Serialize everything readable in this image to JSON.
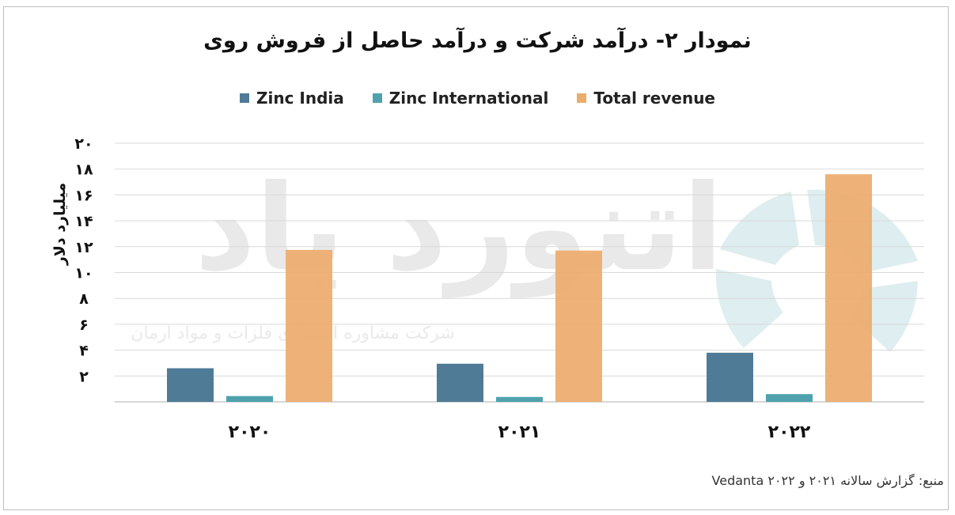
{
  "title": "نمودار ۲- درآمد شرکت و درآمد حاصل از فروش روی",
  "source": "منبع: گزارش سالانه ۲۰۲۱ و ۲۰۲۲ Vedanta",
  "watermark": {
    "brand": "آتنورد یاد",
    "tagline": "شرکت مشاوره اقتصادی فلزات و مواد ارمان"
  },
  "chart_data": {
    "type": "bar",
    "title": "نمودار ۲- درآمد شرکت و درآمد حاصل از فروش روی",
    "ylabel": "میلیارد دلار",
    "xlabel": "",
    "categories": [
      "۲۰۲۰",
      "۲۰۲۱",
      "۲۰۲۲"
    ],
    "ylim": [
      0,
      20
    ],
    "yticks": [
      2,
      4,
      6,
      8,
      10,
      12,
      14,
      16,
      18,
      20
    ],
    "ytick_labels": [
      "۲",
      "۴",
      "۶",
      "۸",
      "۱۰",
      "۱۲",
      "۱۴",
      "۱۶",
      "۱۸",
      "۲۰"
    ],
    "grid": true,
    "legend_position": "top",
    "series": [
      {
        "name": "Zinc India",
        "color": "#4f7b96",
        "values": [
          2.6,
          2.95,
          3.8
        ]
      },
      {
        "name": "Zinc International",
        "color": "#4fa2ad",
        "values": [
          0.45,
          0.38,
          0.6
        ]
      },
      {
        "name": "Total revenue",
        "color": "#edab6c",
        "values": [
          11.75,
          11.7,
          17.6
        ]
      }
    ]
  }
}
